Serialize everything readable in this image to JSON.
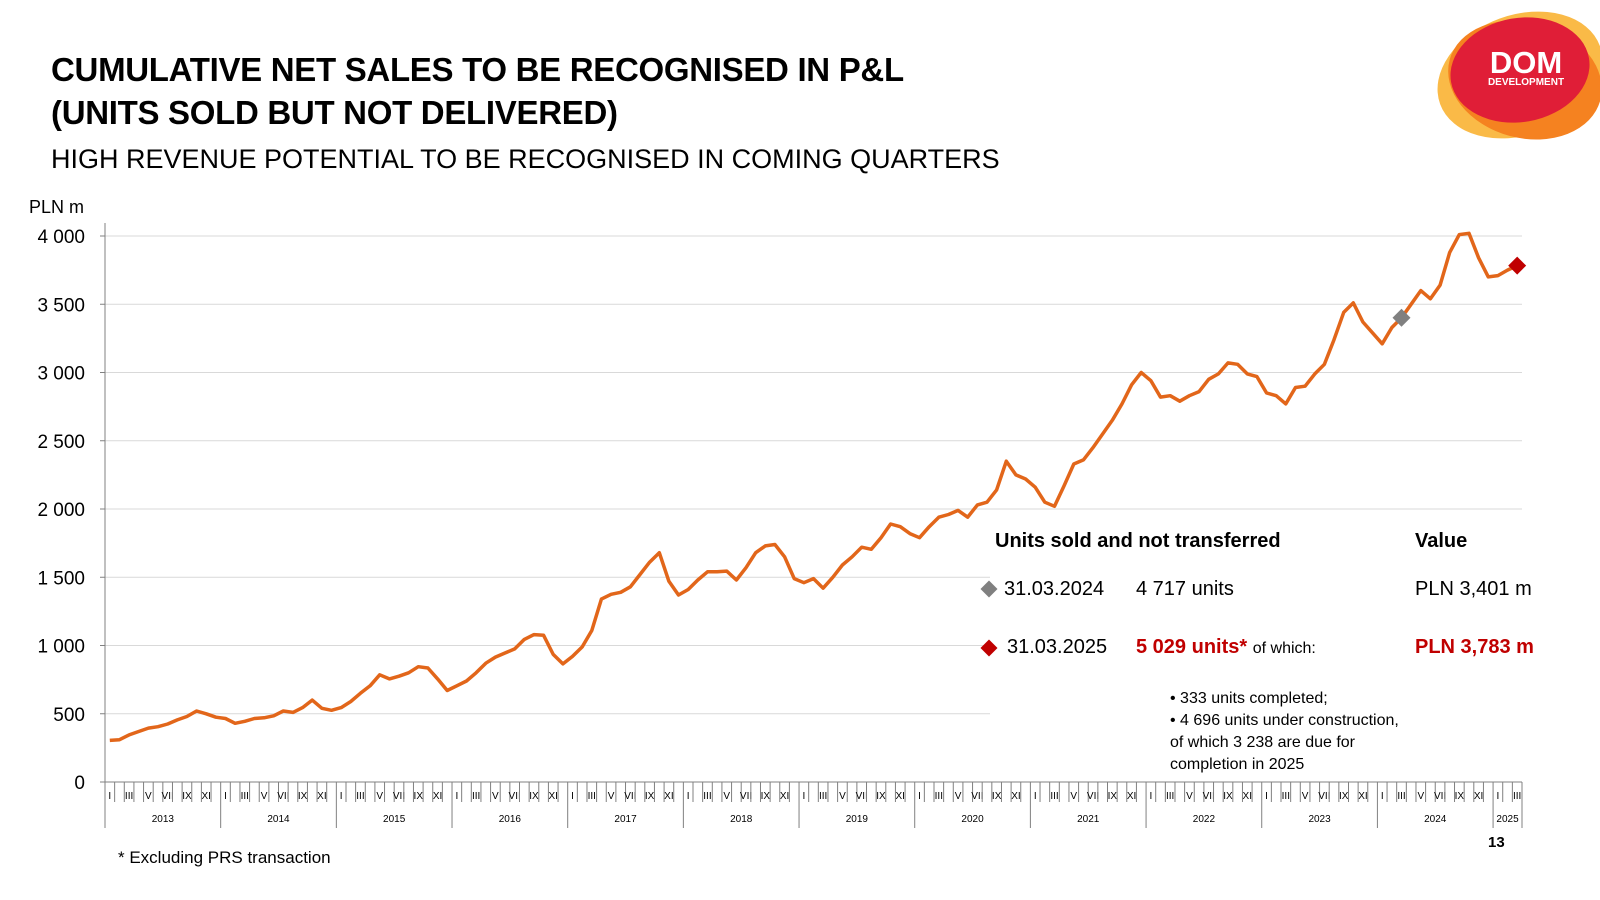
{
  "header": {
    "title_line1": "CUMULATIVE NET SALES TO BE RECOGNISED IN P&L",
    "title_line2": "(UNITS SOLD BUT NOT DELIVERED)",
    "subtitle": "HIGH REVENUE POTENTIAL TO BE RECOGNISED IN COMING QUARTERS"
  },
  "logo": {
    "line1": "DOM",
    "line2": "DEVELOPMENT"
  },
  "colors": {
    "line": "#e2661a",
    "grey_marker": "#808080",
    "red_marker": "#c00000",
    "logo_red": "#e01e37",
    "logo_orange": "#f58220"
  },
  "chart_data": {
    "type": "line",
    "title": "CUMULATIVE NET SALES TO BE RECOGNISED IN P&L",
    "ylabel": "PLN m",
    "ylim": [
      0,
      4000
    ],
    "yticks": [
      0,
      500,
      1000,
      1500,
      2000,
      2500,
      3000,
      3500,
      4000
    ],
    "ytick_labels": [
      "0",
      "500",
      "1 000",
      "1 500",
      "2 000",
      "2 500",
      "3 000",
      "3 500",
      "4 000"
    ],
    "month_tick_labels": [
      "I",
      "",
      "III",
      "",
      "V",
      "",
      "VII",
      "",
      "IX",
      "",
      "XI",
      ""
    ],
    "years": [
      "2013",
      "2014",
      "2015",
      "2016",
      "2017",
      "2018",
      "2019",
      "2020",
      "2021",
      "2022",
      "2023",
      "2024",
      "2025"
    ],
    "x_start": "2013-01",
    "series": [
      {
        "name": "Cumulative net sales to be recognised",
        "values": [
          305,
          310,
          345,
          370,
          395,
          405,
          425,
          455,
          480,
          520,
          500,
          475,
          465,
          430,
          445,
          465,
          470,
          485,
          520,
          510,
          545,
          600,
          540,
          525,
          545,
          590,
          650,
          705,
          785,
          755,
          775,
          800,
          845,
          835,
          755,
          670,
          705,
          740,
          800,
          870,
          915,
          945,
          975,
          1045,
          1080,
          1075,
          935,
          865,
          920,
          990,
          1110,
          1340,
          1375,
          1390,
          1430,
          1520,
          1610,
          1680,
          1470,
          1370,
          1410,
          1480,
          1540,
          1540,
          1545,
          1480,
          1570,
          1680,
          1730,
          1740,
          1650,
          1490,
          1460,
          1490,
          1420,
          1500,
          1590,
          1650,
          1720,
          1705,
          1790,
          1890,
          1870,
          1820,
          1790,
          1870,
          1940,
          1960,
          1990,
          1940,
          2030,
          2050,
          2140,
          2350,
          2250,
          2220,
          2160,
          2050,
          2020,
          2170,
          2330,
          2360,
          2450,
          2550,
          2650,
          2770,
          2910,
          3000,
          2940,
          2820,
          2830,
          2790,
          2830,
          2860,
          2950,
          2990,
          3070,
          3060,
          2990,
          2970,
          2850,
          2830,
          2770,
          2890,
          2900,
          2990,
          3060,
          3240,
          3440,
          3510,
          3370,
          3290,
          3210,
          3330,
          3401,
          3500,
          3600,
          3540,
          3640,
          3880,
          4010,
          4020,
          3840,
          3700,
          3710,
          3750,
          3783
        ]
      }
    ],
    "markers": [
      {
        "label": "31.03.2024",
        "value": 3401,
        "color": "grey"
      },
      {
        "label": "31.03.2025",
        "value": 3783,
        "color": "red"
      }
    ]
  },
  "legend": {
    "header_units": "Units sold and not transferred",
    "header_value": "Value",
    "row1": {
      "date": "31.03.2024",
      "units": "4 717 units",
      "value": "PLN 3,401 m"
    },
    "row2": {
      "date": "31.03.2025",
      "units": "5 029 units*",
      "units_suffix": "of which:",
      "value": "PLN 3,783 m"
    },
    "bullets": [
      "• 333 units completed;",
      "• 4 696 units under construction,",
      "of which 3 238 are due for",
      "completion in 2025"
    ]
  },
  "footnote": "* Excluding PRS transaction",
  "page_number": "13"
}
